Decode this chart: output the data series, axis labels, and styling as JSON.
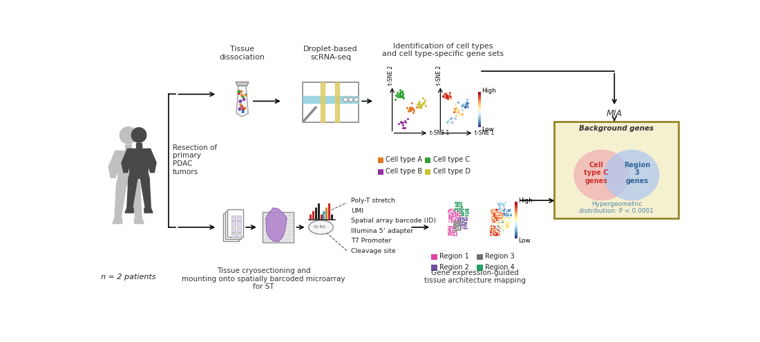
{
  "fig_width": 11.0,
  "fig_height": 4.95,
  "bg_color": "#ffffff",
  "title_top": "Identification of cell types\nand cell type-specific gene sets",
  "label_tissue_diss": "Tissue\ndissociation",
  "label_droplet": "Droplet-based\nscRNA-seq",
  "label_resection": "Resection of\nprimary\nPDAC\ntumors",
  "label_n_patients": "n = 2 patients",
  "label_mia": "MIA",
  "label_bg_genes": "Background genes",
  "label_cell_type_c": "Cell\ntype C\ngenes",
  "label_region3": "Region\n3\ngenes",
  "label_hyper": "Hypergeometric\ndistribution: P < 0.0001",
  "label_poly_t": "Poly-T stretch",
  "label_umi": "UMI",
  "label_spatial": "Spatial array barcode (ID)",
  "label_illumina": "Illumina 5’ adapter",
  "label_t7": "T7 Promoter",
  "label_cleavage": "Cleavage site",
  "label_cryo": "Tissue cryosectioning and\nmounting onto spatially barcoded microarray\nfor ST",
  "label_gene_expr": "Gene expression-guided\ntissue architecture mapping",
  "label_high": "High",
  "label_low": "Low",
  "label_tsne1": "t-SNE 1",
  "label_tsne2": "t-SNE 2",
  "legend_entries": [
    {
      "label": "Cell type A",
      "color": "#e07820"
    },
    {
      "label": "Cell type C",
      "color": "#2ea030"
    },
    {
      "label": "Cell type B",
      "color": "#9030a0"
    },
    {
      "label": "Cell type D",
      "color": "#c8c030"
    }
  ],
  "region_entries": [
    {
      "label": "Region 1",
      "color": "#e040a0"
    },
    {
      "label": "Region 3",
      "color": "#707070"
    },
    {
      "label": "Region 2",
      "color": "#7050a0"
    },
    {
      "label": "Region 4",
      "color": "#20a060"
    }
  ],
  "human_light_color": "#c0c0c0",
  "human_dark_color": "#484848",
  "venn_bg_color": "#f5f0d0",
  "venn_left_color": "#f0b0b0",
  "venn_right_color": "#b0c8f0",
  "venn_border_color": "#8b7914",
  "venn_text_left_color": "#cc3333",
  "venn_text_right_color": "#336699",
  "hyper_text_color": "#5588aa",
  "xmax": 11.0,
  "ymax": 4.95
}
